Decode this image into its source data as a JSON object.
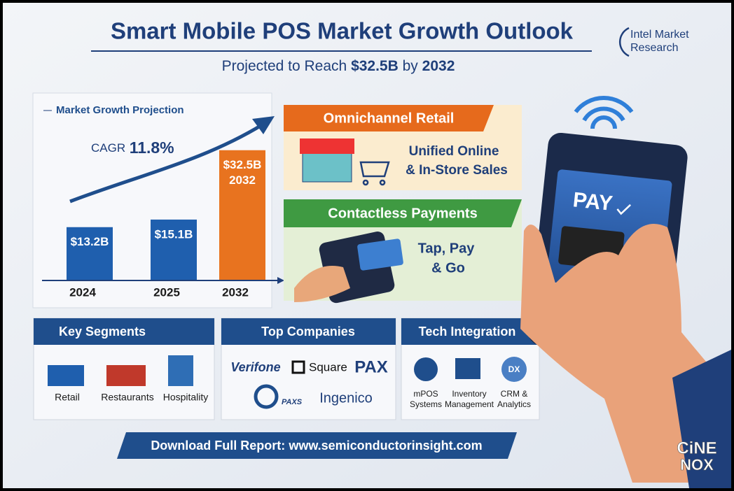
{
  "header": {
    "title": "Smart Mobile POS Market Growth Outlook",
    "subtitle": [
      "Projected to Reach",
      "$32.5B",
      "by",
      "2032"
    ],
    "brand": [
      "Intel Market",
      "Research"
    ]
  },
  "chart_data": {
    "type": "bar",
    "title": "Market Growth Projection",
    "annotation": [
      "CAGR",
      "11.8%"
    ],
    "categories": [
      "2024",
      "2025",
      "2032"
    ],
    "values": [
      13.2,
      15.1,
      32.5
    ],
    "value_labels": [
      "$13.2B",
      "$15.1B",
      "$32.5B"
    ],
    "colors": [
      "#1f5fae",
      "#1f5fae",
      "#e8731f"
    ]
  },
  "features": [
    {
      "title": "Omnichannel Retail",
      "text": [
        "Unified Online",
        "& In-Store Sales"
      ]
    },
    {
      "title": "Contactless Payments",
      "text": [
        "Tap, Pay",
        "& Go"
      ]
    }
  ],
  "panels": [
    {
      "title": "Key Segments",
      "items": [
        "Retail",
        "Restaurants",
        "Hospitality"
      ]
    },
    {
      "title": "Top Companies",
      "items": [
        "Verifone",
        "Square",
        "PAX",
        "PAXS",
        "Ingenico"
      ]
    },
    {
      "title": "Tech Integration",
      "items": [
        [
          "mPOS",
          "Systems"
        ],
        [
          "Inventory",
          "Management"
        ],
        [
          "CRM &",
          "Analytics"
        ]
      ],
      "icon": "DX"
    }
  ],
  "cta": {
    "label": "Download Full Report:",
    "url": "www.semiconductorinsight.com"
  },
  "phone": {
    "screen": "PAY"
  },
  "watermark": [
    "CiNE",
    "NOX"
  ]
}
